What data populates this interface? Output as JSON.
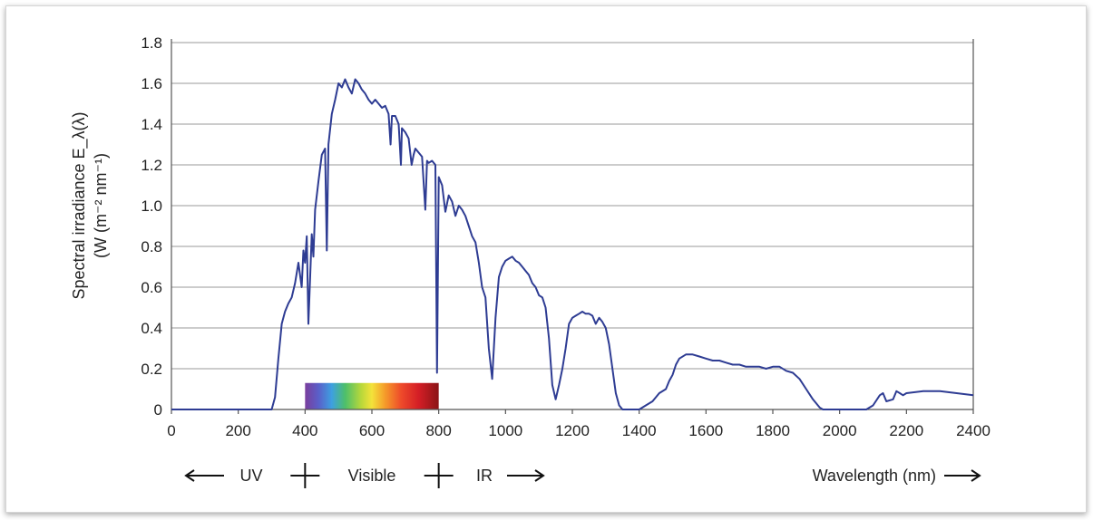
{
  "chart_data": {
    "type": "line",
    "xlabel": "Wavelength (nm)",
    "ylabel_line1": "Spectral irradiance E_λ(λ)",
    "ylabel_line2": "(W (m⁻² nm⁻¹)",
    "xlim": [
      0,
      2400
    ],
    "ylim": [
      0,
      1.8
    ],
    "xticks": [
      0,
      200,
      400,
      600,
      800,
      1000,
      1200,
      1400,
      1600,
      1800,
      2000,
      2200,
      2400
    ],
    "yticks": [
      0,
      0.2,
      0.4,
      0.6,
      0.8,
      1.0,
      1.2,
      1.4,
      1.6,
      1.8
    ],
    "ytick_labels": [
      "0",
      "0.2",
      "0.4",
      "0.6",
      "0.8",
      "1.0",
      "1.2",
      "1.4",
      "1.6",
      "1.8"
    ],
    "grid": "horizontal",
    "series": [
      {
        "color": "#2e3c93",
        "points": [
          [
            0,
            0
          ],
          [
            300,
            0
          ],
          [
            310,
            0.06
          ],
          [
            320,
            0.25
          ],
          [
            330,
            0.42
          ],
          [
            340,
            0.48
          ],
          [
            350,
            0.52
          ],
          [
            360,
            0.55
          ],
          [
            370,
            0.62
          ],
          [
            380,
            0.72
          ],
          [
            390,
            0.6
          ],
          [
            395,
            0.78
          ],
          [
            400,
            0.72
          ],
          [
            405,
            0.85
          ],
          [
            410,
            0.42
          ],
          [
            420,
            0.86
          ],
          [
            425,
            0.75
          ],
          [
            430,
            0.98
          ],
          [
            440,
            1.12
          ],
          [
            450,
            1.25
          ],
          [
            460,
            1.28
          ],
          [
            465,
            0.78
          ],
          [
            470,
            1.3
          ],
          [
            480,
            1.45
          ],
          [
            490,
            1.52
          ],
          [
            500,
            1.6
          ],
          [
            510,
            1.58
          ],
          [
            520,
            1.62
          ],
          [
            530,
            1.58
          ],
          [
            540,
            1.55
          ],
          [
            550,
            1.62
          ],
          [
            560,
            1.6
          ],
          [
            570,
            1.57
          ],
          [
            580,
            1.55
          ],
          [
            590,
            1.52
          ],
          [
            600,
            1.5
          ],
          [
            610,
            1.52
          ],
          [
            620,
            1.5
          ],
          [
            630,
            1.48
          ],
          [
            640,
            1.49
          ],
          [
            650,
            1.45
          ],
          [
            656,
            1.3
          ],
          [
            660,
            1.44
          ],
          [
            670,
            1.44
          ],
          [
            680,
            1.4
          ],
          [
            687,
            1.2
          ],
          [
            690,
            1.38
          ],
          [
            700,
            1.36
          ],
          [
            710,
            1.33
          ],
          [
            719,
            1.2
          ],
          [
            725,
            1.25
          ],
          [
            730,
            1.28
          ],
          [
            740,
            1.26
          ],
          [
            750,
            1.24
          ],
          [
            760,
            0.98
          ],
          [
            765,
            1.22
          ],
          [
            770,
            1.21
          ],
          [
            780,
            1.22
          ],
          [
            790,
            1.2
          ],
          [
            795,
            0.18
          ],
          [
            800,
            1.14
          ],
          [
            810,
            1.1
          ],
          [
            820,
            0.97
          ],
          [
            830,
            1.05
          ],
          [
            840,
            1.02
          ],
          [
            850,
            0.95
          ],
          [
            860,
            1.0
          ],
          [
            870,
            0.98
          ],
          [
            880,
            0.95
          ],
          [
            890,
            0.9
          ],
          [
            900,
            0.85
          ],
          [
            910,
            0.82
          ],
          [
            920,
            0.72
          ],
          [
            930,
            0.6
          ],
          [
            940,
            0.55
          ],
          [
            950,
            0.3
          ],
          [
            960,
            0.15
          ],
          [
            970,
            0.45
          ],
          [
            980,
            0.65
          ],
          [
            990,
            0.7
          ],
          [
            1000,
            0.73
          ],
          [
            1010,
            0.74
          ],
          [
            1020,
            0.75
          ],
          [
            1030,
            0.73
          ],
          [
            1040,
            0.72
          ],
          [
            1050,
            0.7
          ],
          [
            1060,
            0.68
          ],
          [
            1070,
            0.66
          ],
          [
            1080,
            0.62
          ],
          [
            1090,
            0.6
          ],
          [
            1100,
            0.56
          ],
          [
            1110,
            0.55
          ],
          [
            1120,
            0.5
          ],
          [
            1130,
            0.35
          ],
          [
            1140,
            0.12
          ],
          [
            1150,
            0.05
          ],
          [
            1160,
            0.12
          ],
          [
            1170,
            0.2
          ],
          [
            1180,
            0.3
          ],
          [
            1190,
            0.42
          ],
          [
            1200,
            0.45
          ],
          [
            1210,
            0.46
          ],
          [
            1220,
            0.47
          ],
          [
            1230,
            0.48
          ],
          [
            1240,
            0.47
          ],
          [
            1250,
            0.47
          ],
          [
            1260,
            0.46
          ],
          [
            1270,
            0.42
          ],
          [
            1280,
            0.45
          ],
          [
            1290,
            0.43
          ],
          [
            1300,
            0.4
          ],
          [
            1310,
            0.32
          ],
          [
            1320,
            0.2
          ],
          [
            1330,
            0.08
          ],
          [
            1340,
            0.02
          ],
          [
            1350,
            0
          ],
          [
            1400,
            0
          ],
          [
            1420,
            0.02
          ],
          [
            1440,
            0.04
          ],
          [
            1460,
            0.08
          ],
          [
            1480,
            0.1
          ],
          [
            1490,
            0.14
          ],
          [
            1500,
            0.17
          ],
          [
            1510,
            0.22
          ],
          [
            1520,
            0.25
          ],
          [
            1540,
            0.27
          ],
          [
            1560,
            0.27
          ],
          [
            1580,
            0.26
          ],
          [
            1600,
            0.25
          ],
          [
            1620,
            0.24
          ],
          [
            1640,
            0.24
          ],
          [
            1660,
            0.23
          ],
          [
            1680,
            0.22
          ],
          [
            1700,
            0.22
          ],
          [
            1720,
            0.21
          ],
          [
            1740,
            0.21
          ],
          [
            1760,
            0.21
          ],
          [
            1780,
            0.2
          ],
          [
            1800,
            0.21
          ],
          [
            1820,
            0.21
          ],
          [
            1840,
            0.19
          ],
          [
            1860,
            0.18
          ],
          [
            1880,
            0.15
          ],
          [
            1900,
            0.1
          ],
          [
            1920,
            0.05
          ],
          [
            1940,
            0.01
          ],
          [
            1950,
            0
          ],
          [
            2080,
            0
          ],
          [
            2100,
            0.02
          ],
          [
            2120,
            0.07
          ],
          [
            2130,
            0.08
          ],
          [
            2140,
            0.04
          ],
          [
            2160,
            0.05
          ],
          [
            2170,
            0.09
          ],
          [
            2180,
            0.08
          ],
          [
            2190,
            0.07
          ],
          [
            2200,
            0.08
          ],
          [
            2250,
            0.09
          ],
          [
            2300,
            0.09
          ],
          [
            2350,
            0.08
          ],
          [
            2400,
            0.07
          ]
        ]
      }
    ],
    "visible_band": {
      "start": 400,
      "end": 800
    },
    "band_labels": {
      "uv": "UV",
      "visible": "Visible",
      "ir": "IR"
    }
  }
}
